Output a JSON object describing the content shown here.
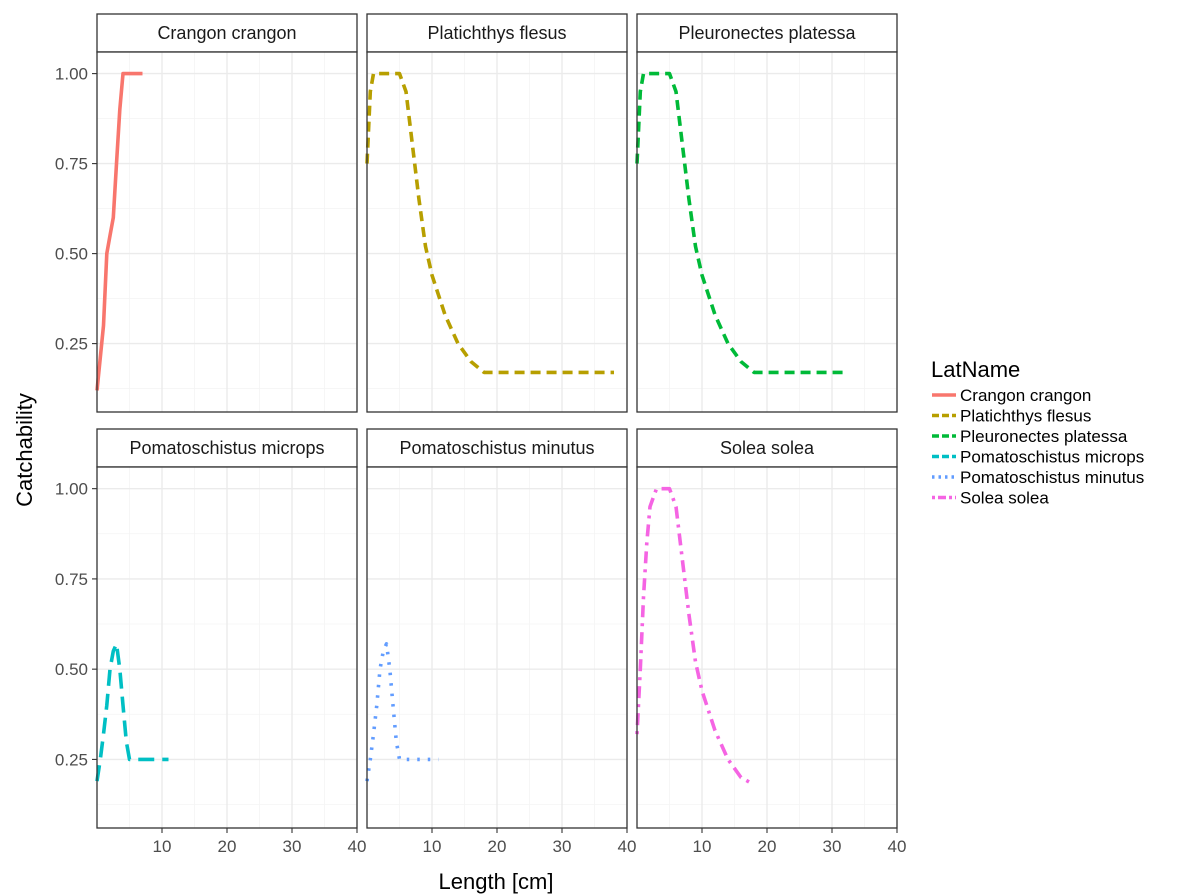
{
  "chart_data": {
    "type": "line",
    "xlabel": "Length [cm]",
    "ylabel": "Catchability",
    "xlim": [
      0,
      40
    ],
    "ylim": [
      0.06,
      1.06
    ],
    "x_ticks": [
      10,
      20,
      30,
      40
    ],
    "x_tick_labels": [
      "10",
      "20",
      "30",
      "40"
    ],
    "y_ticks": [
      0.25,
      0.5,
      0.75,
      1.0
    ],
    "y_tick_labels": [
      "0.25",
      "0.50",
      "0.75",
      "1.00"
    ],
    "grid": true,
    "legend": {
      "title": "LatName",
      "placement": "right"
    },
    "series": [
      {
        "name": "Crangon crangon",
        "color": "#F8766D",
        "linetype": "solid",
        "x": [
          0,
          1,
          1.5,
          2,
          2.5,
          3,
          3.5,
          4,
          5,
          6,
          7
        ],
        "y": [
          0.12,
          0.3,
          0.5,
          0.55,
          0.6,
          0.75,
          0.9,
          1.0,
          1.0,
          1.0,
          1.0
        ]
      },
      {
        "name": "Platichthys flesus",
        "color": "#B79F00",
        "linetype": "dashed",
        "x": [
          0,
          0.5,
          1,
          2,
          3,
          4,
          5,
          6,
          7,
          8,
          9,
          10,
          12,
          14,
          16,
          18,
          20,
          25,
          30,
          35,
          38
        ],
        "y": [
          0.75,
          0.95,
          1.0,
          1.0,
          1.0,
          1.0,
          1.0,
          0.95,
          0.8,
          0.65,
          0.52,
          0.44,
          0.33,
          0.25,
          0.2,
          0.17,
          0.17,
          0.17,
          0.17,
          0.17,
          0.17
        ]
      },
      {
        "name": "Pleuronectes platessa",
        "color": "#00BA38",
        "linetype": "dashed",
        "x": [
          0,
          0.5,
          1,
          2,
          3,
          4,
          5,
          6,
          7,
          8,
          9,
          10,
          12,
          14,
          16,
          18,
          20,
          25,
          30,
          32
        ],
        "y": [
          0.75,
          0.95,
          1.0,
          1.0,
          1.0,
          1.0,
          1.0,
          0.95,
          0.8,
          0.65,
          0.52,
          0.44,
          0.33,
          0.25,
          0.2,
          0.17,
          0.17,
          0.17,
          0.17,
          0.17
        ]
      },
      {
        "name": "Pomatoschistus microps",
        "color": "#00BFC4",
        "linetype": "longdash",
        "x": [
          0,
          0.5,
          1,
          1.5,
          2,
          2.5,
          3,
          3.5,
          4,
          4.5,
          5,
          6,
          8,
          10,
          11
        ],
        "y": [
          0.19,
          0.25,
          0.32,
          0.4,
          0.5,
          0.55,
          0.57,
          0.5,
          0.4,
          0.3,
          0.25,
          0.25,
          0.25,
          0.25,
          0.25
        ]
      },
      {
        "name": "Pomatoschistus minutus",
        "color": "#619CFF",
        "linetype": "dotted",
        "x": [
          0,
          0.5,
          1,
          1.5,
          2,
          2.5,
          3,
          3.5,
          4,
          4.5,
          5,
          6,
          8,
          10,
          11
        ],
        "y": [
          0.19,
          0.25,
          0.32,
          0.4,
          0.5,
          0.55,
          0.57,
          0.5,
          0.4,
          0.3,
          0.25,
          0.25,
          0.25,
          0.25,
          0.25
        ]
      },
      {
        "name": "Solea solea",
        "color": "#F564E3",
        "linetype": "dotdash",
        "x": [
          0,
          0.5,
          1,
          1.5,
          2,
          3,
          4,
          5,
          6,
          7,
          8,
          9,
          10,
          12,
          14,
          16,
          18
        ],
        "y": [
          0.32,
          0.5,
          0.7,
          0.85,
          0.95,
          1.0,
          1.0,
          1.0,
          0.95,
          0.8,
          0.65,
          0.52,
          0.44,
          0.33,
          0.25,
          0.2,
          0.18
        ]
      }
    ]
  }
}
